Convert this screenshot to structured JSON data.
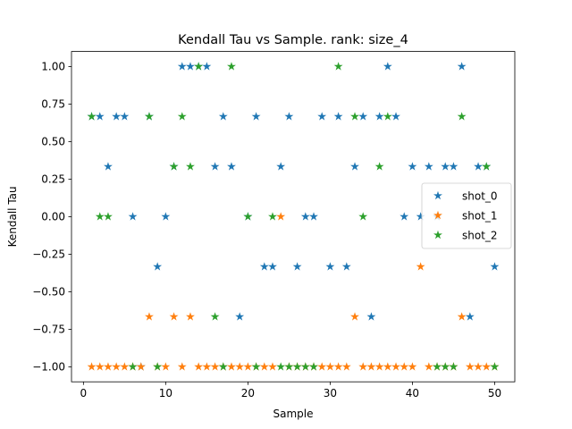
{
  "chart_data": {
    "type": "scatter",
    "title": "Kendall Tau vs Sample. rank: size_4",
    "xlabel": "Sample",
    "ylabel": "Kendall Tau",
    "xlim": [
      -1.45,
      52.45
    ],
    "ylim": [
      -1.1,
      1.1
    ],
    "xticks": [
      0,
      10,
      20,
      30,
      40,
      50
    ],
    "yticks": [
      -1.0,
      -0.75,
      -0.5,
      -0.25,
      0.0,
      0.25,
      0.5,
      0.75,
      1.0
    ],
    "xtick_labels": [
      "0",
      "10",
      "20",
      "30",
      "40",
      "50"
    ],
    "ytick_labels": [
      "−1.00",
      "−0.75",
      "−0.50",
      "−0.25",
      "0.00",
      "0.25",
      "0.50",
      "0.75",
      "1.00"
    ],
    "grid": false,
    "legend_position": "center-right",
    "marker": "star",
    "series": [
      {
        "name": "shot_0",
        "color": "#1f77b4",
        "x": [
          1,
          2,
          3,
          4,
          5,
          6,
          7,
          8,
          9,
          10,
          11,
          12,
          13,
          14,
          15,
          16,
          17,
          18,
          19,
          20,
          21,
          22,
          23,
          24,
          25,
          26,
          27,
          28,
          29,
          30,
          31,
          32,
          33,
          34,
          35,
          36,
          37,
          38,
          39,
          40,
          41,
          42,
          43,
          44,
          45,
          46,
          47,
          48,
          49,
          50
        ],
        "y": [
          0.6667,
          0.6667,
          0.3333,
          0.6667,
          0.6667,
          0.0,
          -1.0,
          0.6667,
          -0.3333,
          0.0,
          0.3333,
          1.0,
          1.0,
          1.0,
          1.0,
          0.3333,
          0.6667,
          0.3333,
          -0.6667,
          0.0,
          0.6667,
          -0.3333,
          -0.3333,
          0.3333,
          0.6667,
          -0.3333,
          0.0,
          0.0,
          0.6667,
          -0.3333,
          0.6667,
          -0.3333,
          0.3333,
          0.6667,
          -0.6667,
          0.6667,
          1.0,
          0.6667,
          0.0,
          0.3333,
          0.0,
          0.3333,
          0.0,
          0.3333,
          0.3333,
          1.0,
          -0.6667,
          0.3333,
          0.3333,
          -0.3333
        ]
      },
      {
        "name": "shot_1",
        "color": "#ff7f0e",
        "x": [
          1,
          2,
          3,
          4,
          5,
          6,
          7,
          8,
          9,
          10,
          11,
          12,
          13,
          14,
          15,
          16,
          17,
          18,
          19,
          20,
          21,
          22,
          23,
          24,
          25,
          26,
          27,
          28,
          29,
          30,
          31,
          32,
          33,
          34,
          35,
          36,
          37,
          38,
          39,
          40,
          41,
          42,
          43,
          44,
          45,
          46,
          47,
          48,
          49,
          50
        ],
        "y": [
          -1.0,
          -1.0,
          -1.0,
          -1.0,
          -1.0,
          -1.0,
          -1.0,
          -0.6667,
          -1.0,
          -1.0,
          -0.6667,
          -1.0,
          -0.6667,
          -1.0,
          -1.0,
          -1.0,
          -1.0,
          -1.0,
          -1.0,
          -1.0,
          -1.0,
          -1.0,
          -1.0,
          0.0,
          -1.0,
          -1.0,
          -1.0,
          -1.0,
          -1.0,
          -1.0,
          -1.0,
          -1.0,
          -0.6667,
          -1.0,
          -1.0,
          -1.0,
          -1.0,
          -1.0,
          -1.0,
          -1.0,
          -0.3333,
          -1.0,
          -1.0,
          -1.0,
          -1.0,
          -0.6667,
          -1.0,
          -1.0,
          -1.0,
          -1.0
        ]
      },
      {
        "name": "shot_2",
        "color": "#2ca02c",
        "x": [
          1,
          2,
          3,
          6,
          8,
          9,
          11,
          12,
          13,
          14,
          16,
          17,
          18,
          20,
          21,
          23,
          24,
          25,
          26,
          27,
          28,
          31,
          33,
          34,
          36,
          37,
          43,
          44,
          45,
          46,
          49,
          50
        ],
        "y": [
          0.6667,
          0.0,
          0.0,
          -1.0,
          0.6667,
          -1.0,
          0.3333,
          0.6667,
          0.3333,
          1.0,
          -0.6667,
          -1.0,
          1.0,
          0.0,
          -1.0,
          0.0,
          -1.0,
          -1.0,
          -1.0,
          -1.0,
          -1.0,
          1.0,
          0.6667,
          0.0,
          0.3333,
          0.6667,
          -1.0,
          -1.0,
          -1.0,
          0.6667,
          0.3333,
          -1.0
        ]
      }
    ]
  }
}
